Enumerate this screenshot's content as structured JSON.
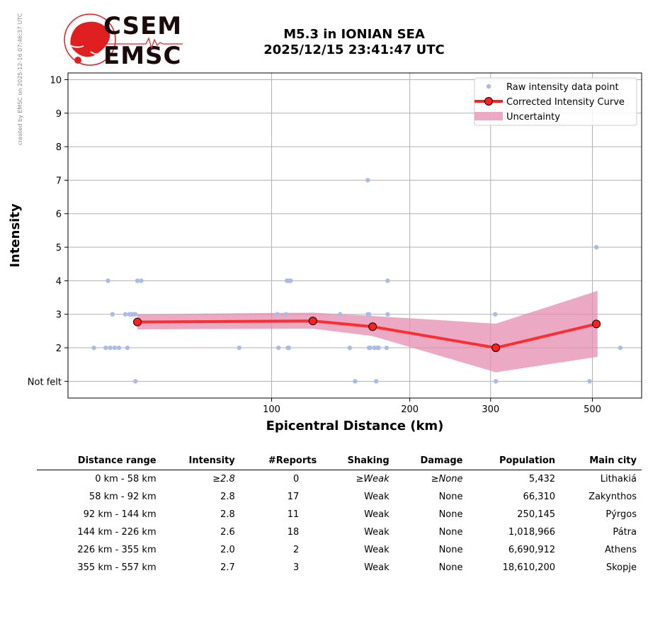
{
  "side_note": "created by EMSC on 2025-12-16 07:46:37 UTC",
  "logo": {
    "line1": "CSEM",
    "line2": "EMSC",
    "red": "#e02020"
  },
  "title": {
    "line1": "M5.3 in IONIAN SEA",
    "line2": "2025/12/15 23:41:47 UTC"
  },
  "chart_data": {
    "type": "scatter",
    "xscale": "log",
    "xlabel": "Epicentral Distance (km)",
    "ylabel": "Intensity",
    "xlim": [
      36,
      640
    ],
    "ylim": [
      0.5,
      10.2
    ],
    "xticks": [
      100,
      200,
      300,
      500
    ],
    "yticks": [
      1,
      2,
      3,
      4,
      5,
      6,
      7,
      8,
      9,
      10
    ],
    "ytick_labels": [
      "Not felt",
      "2",
      "3",
      "4",
      "5",
      "6",
      "7",
      "8",
      "9",
      "10"
    ],
    "grid": true,
    "legend_position": "top-right",
    "legend": [
      "Raw intensity data point",
      "Corrected Intensity Curve",
      "Uncertainty"
    ],
    "colors": {
      "raw": "#aabbe8",
      "curve": "#ff2020",
      "band": "#e58cb0"
    },
    "raw_points": [
      [
        41,
        2
      ],
      [
        43.5,
        2
      ],
      [
        44,
        4
      ],
      [
        44.5,
        2
      ],
      [
        45,
        3
      ],
      [
        45.5,
        2
      ],
      [
        46.5,
        2
      ],
      [
        48,
        3
      ],
      [
        48.5,
        2
      ],
      [
        49,
        3
      ],
      [
        49.5,
        3
      ],
      [
        50,
        3
      ],
      [
        50.5,
        1
      ],
      [
        50.5,
        3
      ],
      [
        51,
        4
      ],
      [
        52,
        4
      ],
      [
        85,
        2
      ],
      [
        103,
        3
      ],
      [
        103.5,
        2
      ],
      [
        107.5,
        3
      ],
      [
        108,
        4
      ],
      [
        108.5,
        2
      ],
      [
        109,
        4
      ],
      [
        109,
        2
      ],
      [
        110,
        4
      ],
      [
        141,
        3
      ],
      [
        148,
        2
      ],
      [
        152,
        1
      ],
      [
        162,
        7
      ],
      [
        162,
        3
      ],
      [
        163,
        3
      ],
      [
        163,
        2
      ],
      [
        164,
        2
      ],
      [
        167.5,
        2
      ],
      [
        169,
        1
      ],
      [
        170,
        2
      ],
      [
        171,
        2
      ],
      [
        178,
        2
      ],
      [
        179,
        4
      ],
      [
        179,
        3
      ],
      [
        307,
        3
      ],
      [
        308,
        1
      ],
      [
        493,
        1
      ],
      [
        510,
        5
      ],
      [
        575,
        2
      ]
    ],
    "curve": {
      "x": [
        51,
        123,
        166,
        308,
        510
      ],
      "y": [
        2.77,
        2.8,
        2.63,
        2.0,
        2.71
      ]
    },
    "band": {
      "x": [
        51,
        123,
        166,
        308,
        513
      ],
      "upper": [
        3.0,
        3.05,
        2.95,
        2.72,
        3.7
      ],
      "lower": [
        2.55,
        2.57,
        2.35,
        1.27,
        1.73
      ]
    }
  },
  "table": {
    "headers": [
      "Distance range",
      "Intensity",
      "#Reports",
      "Shaking",
      "Damage",
      "Population",
      "Main city"
    ],
    "rows": [
      {
        "range": "0 km -   58 km",
        "intensity": "≥2.8",
        "reports": "0",
        "shaking": "≥Weak",
        "damage": "≥None",
        "population": "5,432",
        "city": "Lithakiá"
      },
      {
        "range": "58 km -   92 km",
        "intensity": "2.8",
        "reports": "17",
        "shaking": "Weak",
        "damage": "None",
        "population": "66,310",
        "city": "Zakynthos"
      },
      {
        "range": "92 km -  144 km",
        "intensity": "2.8",
        "reports": "11",
        "shaking": "Weak",
        "damage": "None",
        "population": "250,145",
        "city": "Pýrgos"
      },
      {
        "range": "144 km -  226 km",
        "intensity": "2.6",
        "reports": "18",
        "shaking": "Weak",
        "damage": "None",
        "population": "1,018,966",
        "city": "Pátra"
      },
      {
        "range": "226 km -  355 km",
        "intensity": "2.0",
        "reports": "2",
        "shaking": "Weak",
        "damage": "None",
        "population": "6,690,912",
        "city": "Athens"
      },
      {
        "range": "355 km -  557 km",
        "intensity": "2.7",
        "reports": "3",
        "shaking": "Weak",
        "damage": "None",
        "population": "18,610,200",
        "city": "Skopje"
      }
    ]
  }
}
